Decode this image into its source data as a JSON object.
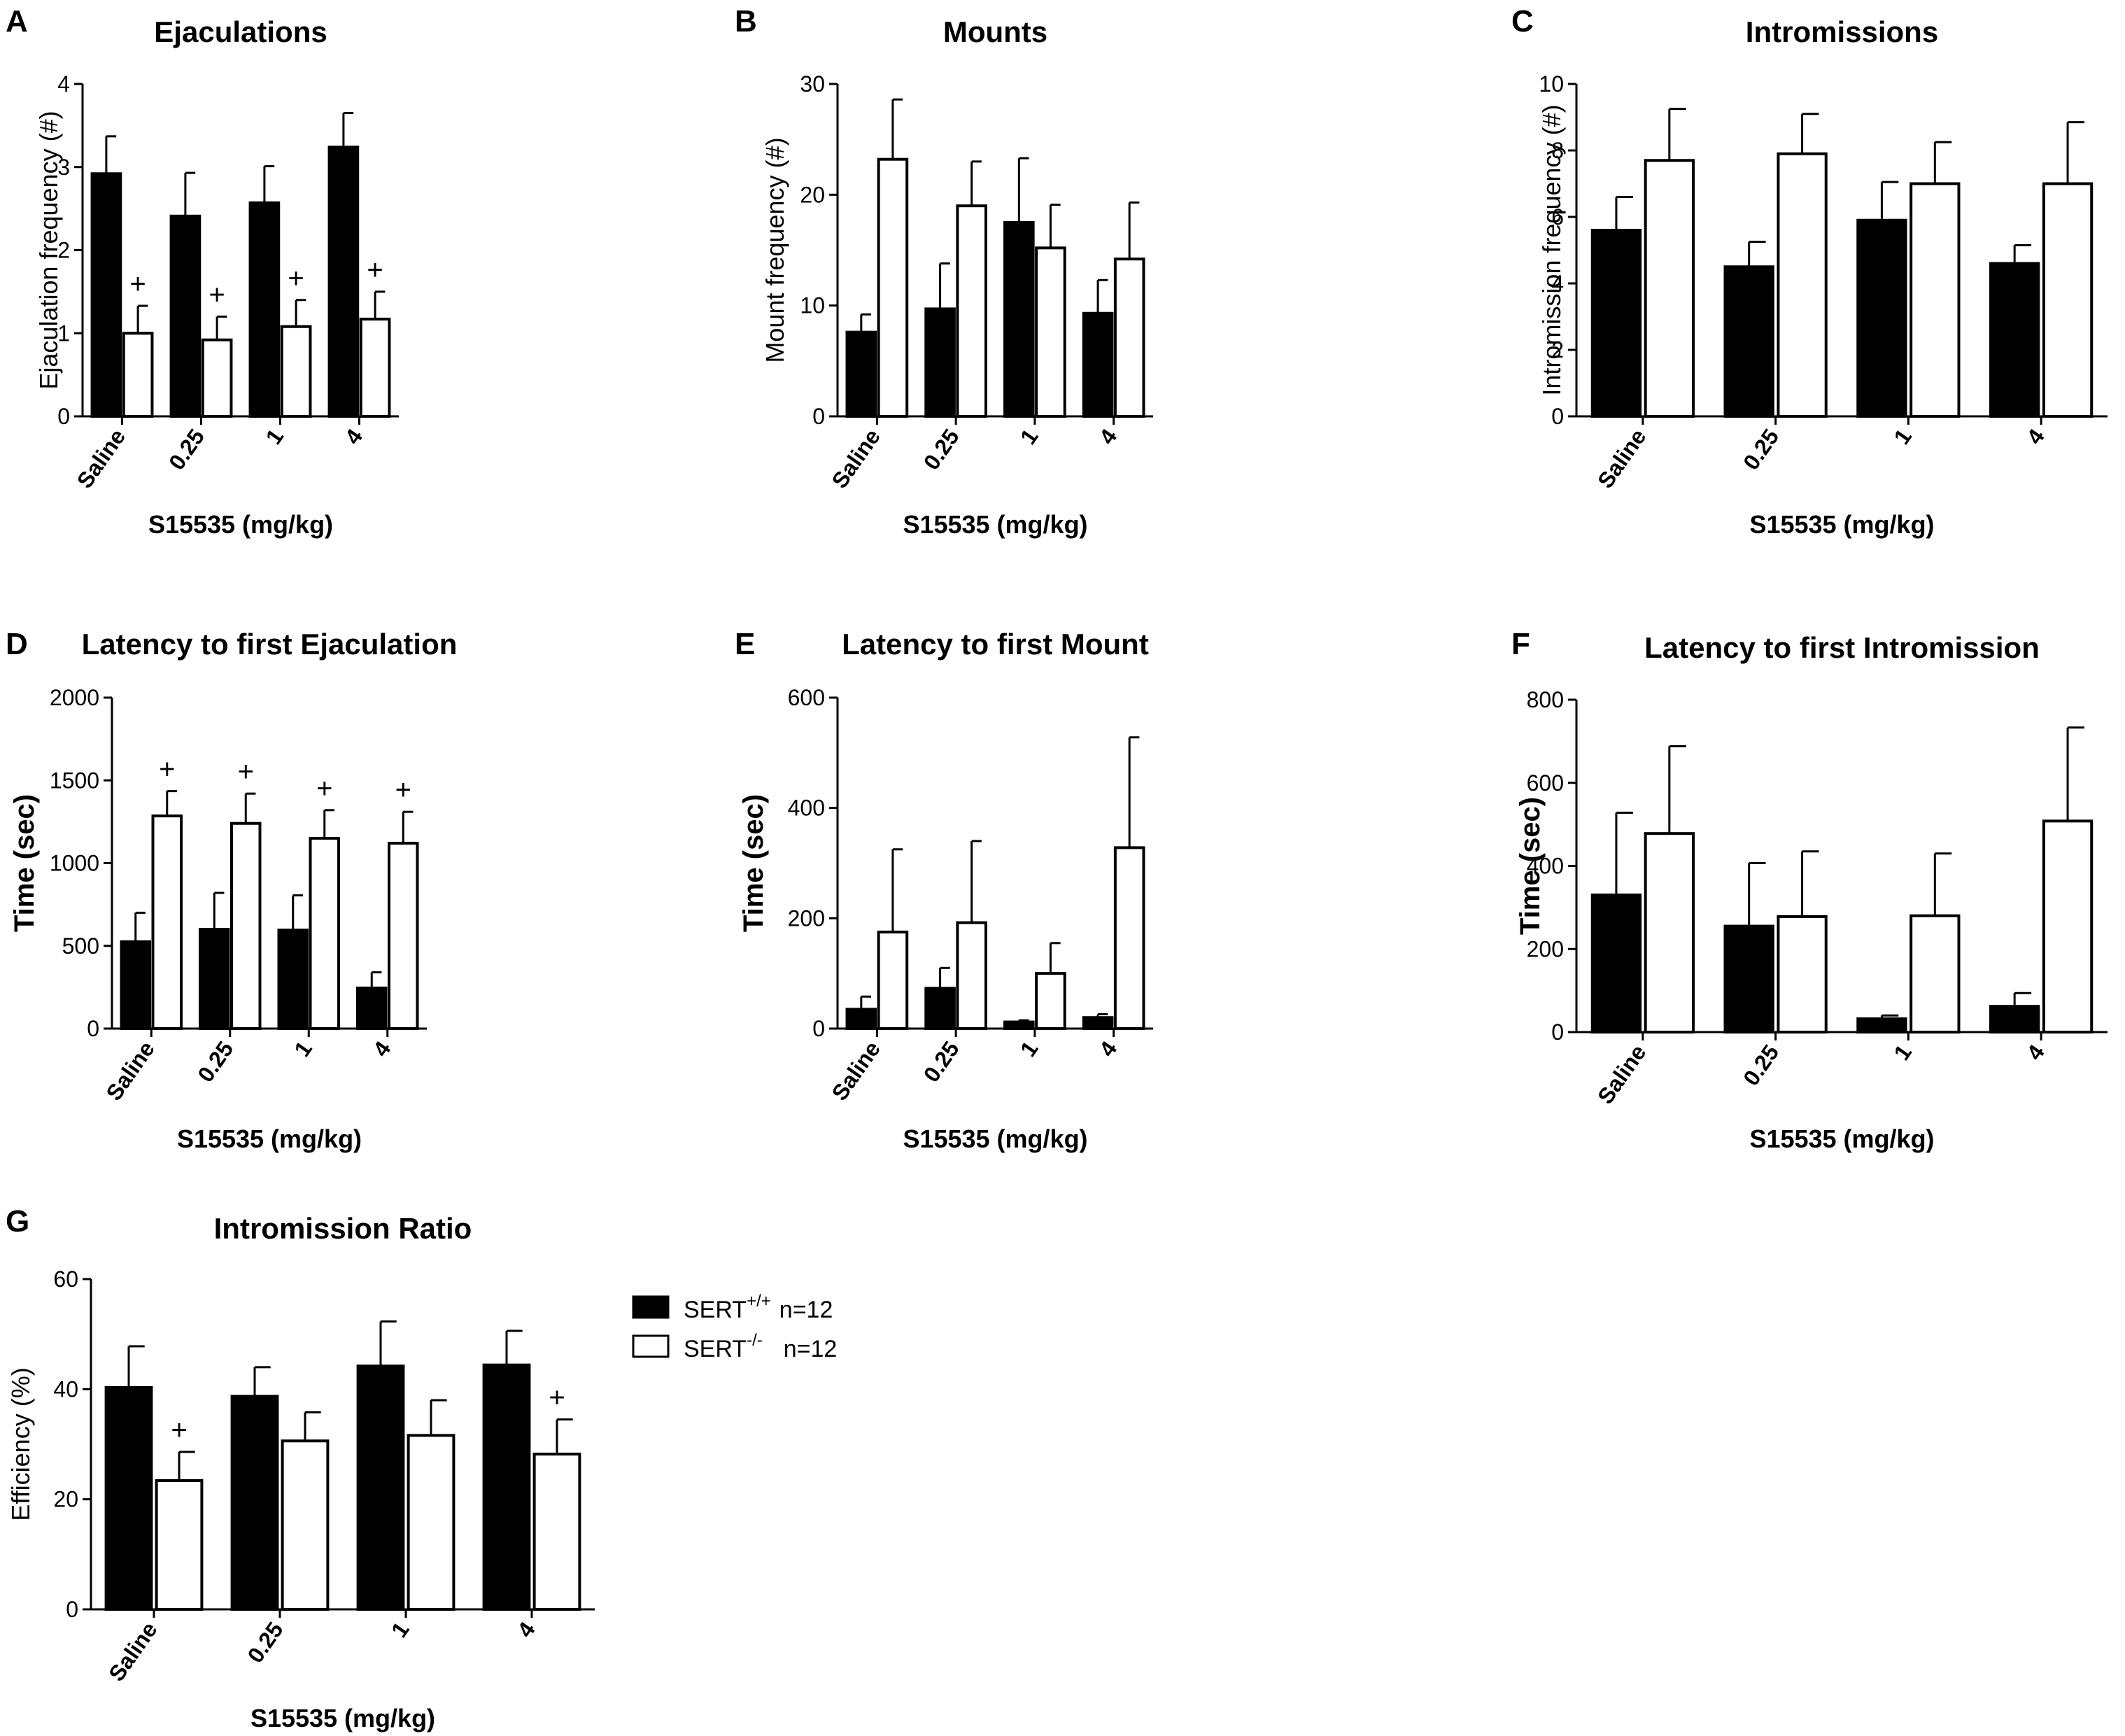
{
  "legend": {
    "entries": [
      {
        "name": "SERT",
        "sup": "+/+",
        "n": "n=12",
        "color": "#000000"
      },
      {
        "name": "SERT",
        "sup": "-/-",
        "n": "n=12",
        "color": "#ffffff"
      }
    ]
  },
  "chart_data": [
    {
      "panel": "A",
      "type": "bar",
      "title": "Ejaculations",
      "ylabel": "Ejaculation frequency (#)",
      "xlabel": "S15535 (mg/kg)",
      "categories": [
        "Saline",
        "0.25",
        "1",
        "4"
      ],
      "ylim": [
        0,
        4
      ],
      "yticks": [
        "0",
        "1",
        "2",
        "3",
        "4"
      ],
      "grid": false,
      "series": [
        {
          "name": "SERT+/+",
          "color": "#000000",
          "values": [
            2.92,
            2.41,
            2.57,
            3.24
          ],
          "errors": [
            0.45,
            0.52,
            0.44,
            0.41
          ]
        },
        {
          "name": "SERT-/-",
          "color": "#ffffff",
          "values": [
            1.0,
            0.92,
            1.08,
            1.17
          ],
          "errors": [
            0.33,
            0.28,
            0.32,
            0.33
          ]
        }
      ],
      "annotations": [
        {
          "series": 1,
          "category": 0,
          "text": "+"
        },
        {
          "series": 1,
          "category": 1,
          "text": "+"
        },
        {
          "series": 1,
          "category": 2,
          "text": "+"
        },
        {
          "series": 1,
          "category": 3,
          "text": "+"
        }
      ]
    },
    {
      "panel": "B",
      "type": "bar",
      "title": "Mounts",
      "ylabel": "Mount frequency (#)",
      "xlabel": "S15535 (mg/kg)",
      "categories": [
        "Saline",
        "0.25",
        "1",
        "4"
      ],
      "ylim": [
        0,
        30
      ],
      "yticks": [
        "0",
        "10",
        "20",
        "30"
      ],
      "grid": false,
      "series": [
        {
          "name": "SERT+/+",
          "color": "#000000",
          "values": [
            7.6,
            9.7,
            17.5,
            9.3
          ],
          "errors": [
            1.6,
            4.1,
            5.8,
            3.0
          ]
        },
        {
          "name": "SERT-/-",
          "color": "#ffffff",
          "values": [
            23.2,
            19.0,
            15.2,
            14.2
          ],
          "errors": [
            5.4,
            4.0,
            3.9,
            5.1
          ]
        }
      ],
      "annotations": []
    },
    {
      "panel": "C",
      "type": "bar",
      "title": "Intromissions",
      "ylabel": "Intromission frequency (#)",
      "xlabel": "S15535 (mg/kg)",
      "categories": [
        "Saline",
        "0.25",
        "1",
        "4"
      ],
      "ylim": [
        0,
        10
      ],
      "yticks": [
        "0",
        "2",
        "4",
        "6",
        "8",
        "10"
      ],
      "grid": false,
      "series": [
        {
          "name": "SERT+/+",
          "color": "#000000",
          "values": [
            5.6,
            4.5,
            5.9,
            4.6
          ],
          "errors": [
            1.0,
            0.75,
            1.15,
            0.55
          ]
        },
        {
          "name": "SERT-/-",
          "color": "#ffffff",
          "values": [
            7.7,
            7.9,
            7.0,
            7.0
          ],
          "errors": [
            1.55,
            1.2,
            1.25,
            1.85
          ]
        }
      ],
      "annotations": []
    },
    {
      "panel": "D",
      "type": "bar",
      "title": "Latency to first Ejaculation",
      "ylabel": "Time (sec)",
      "xlabel": "S15535 (mg/kg)",
      "categories": [
        "Saline",
        "0.25",
        "1",
        "4"
      ],
      "ylim": [
        0,
        2000
      ],
      "yticks": [
        "0",
        "500",
        "1000",
        "1500",
        "2000"
      ],
      "grid": false,
      "series": [
        {
          "name": "SERT+/+",
          "color": "#000000",
          "values": [
            525,
            600,
            595,
            245
          ],
          "errors": [
            175,
            220,
            210,
            95
          ]
        },
        {
          "name": "SERT-/-",
          "color": "#ffffff",
          "values": [
            1285,
            1240,
            1150,
            1120
          ],
          "errors": [
            150,
            180,
            170,
            190
          ]
        }
      ],
      "annotations": [
        {
          "series": 1,
          "category": 0,
          "text": "+"
        },
        {
          "series": 1,
          "category": 1,
          "text": "+"
        },
        {
          "series": 1,
          "category": 2,
          "text": "+"
        },
        {
          "series": 1,
          "category": 3,
          "text": "+"
        }
      ]
    },
    {
      "panel": "E",
      "type": "bar",
      "title": "Latency to first Mount",
      "ylabel": "Time (sec)",
      "xlabel": "S15535 (mg/kg)",
      "categories": [
        "Saline",
        "0.25",
        "1",
        "4"
      ],
      "ylim": [
        0,
        600
      ],
      "yticks": [
        "0",
        "200",
        "400",
        "600"
      ],
      "grid": false,
      "series": [
        {
          "name": "SERT+/+",
          "color": "#000000",
          "values": [
            35,
            73,
            12,
            20
          ],
          "errors": [
            23,
            37,
            3,
            6
          ]
        },
        {
          "name": "SERT-/-",
          "color": "#ffffff",
          "values": [
            175,
            192,
            100,
            328
          ],
          "errors": [
            150,
            148,
            55,
            200
          ]
        }
      ],
      "annotations": []
    },
    {
      "panel": "F",
      "type": "bar",
      "title": "Latency to first Intromission",
      "ylabel": "Time (sec)",
      "xlabel": "S15535 (mg/kg)",
      "categories": [
        "Saline",
        "0.25",
        "1",
        "4"
      ],
      "ylim": [
        0,
        800
      ],
      "yticks": [
        "0",
        "200",
        "400",
        "600",
        "800"
      ],
      "grid": false,
      "series": [
        {
          "name": "SERT+/+",
          "color": "#000000",
          "values": [
            330,
            255,
            32,
            62
          ],
          "errors": [
            198,
            152,
            8,
            32
          ]
        },
        {
          "name": "SERT-/-",
          "color": "#ffffff",
          "values": [
            478,
            278,
            280,
            508
          ],
          "errors": [
            210,
            157,
            150,
            225
          ]
        }
      ],
      "annotations": []
    },
    {
      "panel": "G",
      "type": "bar",
      "title": "Intromission Ratio",
      "ylabel": "Efficiency  (%)",
      "xlabel": "S15535 (mg/kg)",
      "categories": [
        "Saline",
        "0.25",
        "1",
        "4"
      ],
      "ylim": [
        0,
        60
      ],
      "yticks": [
        "0",
        "20",
        "40",
        "60"
      ],
      "grid": false,
      "series": [
        {
          "name": "SERT+/+",
          "color": "#000000",
          "values": [
            40.3,
            38.7,
            44.2,
            44.4
          ],
          "errors": [
            7.5,
            5.3,
            8.1,
            6.2
          ]
        },
        {
          "name": "SERT-/-",
          "color": "#ffffff",
          "values": [
            23.4,
            30.6,
            31.6,
            28.2
          ],
          "errors": [
            5.2,
            5.2,
            6.4,
            6.3
          ]
        }
      ],
      "annotations": [
        {
          "series": 1,
          "category": 0,
          "text": "+"
        },
        {
          "series": 1,
          "category": 3,
          "text": "+"
        }
      ]
    }
  ]
}
